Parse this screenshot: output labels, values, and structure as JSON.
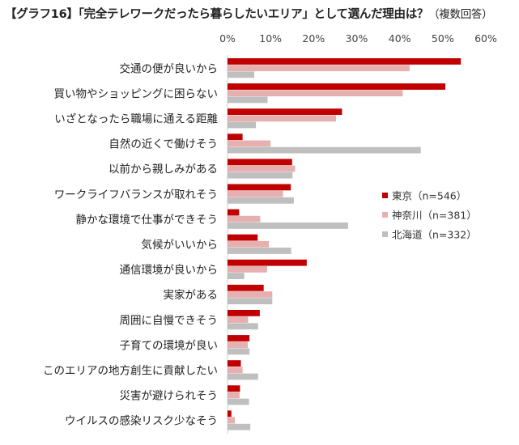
{
  "title_main": "【グラフ16】「完全テレワークだったら暮らしたいエリア」として選んだ理由は？",
  "title_sub": "（複数回答）",
  "chart_data": {
    "type": "bar",
    "orientation": "horizontal",
    "title": "【グラフ16】「完全テレワークだったら暮らしたいエリア」として選んだ理由は？（複数回答）",
    "xlim": [
      0,
      60
    ],
    "ticks": [
      "0%",
      "10%",
      "20%",
      "30%",
      "40%",
      "50%",
      "60%"
    ],
    "tick_values": [
      0,
      10,
      20,
      30,
      40,
      50,
      60
    ],
    "categories": [
      "交通の便が良いから",
      "買い物やショッピングに困らない",
      "いざとなったら職場に通える距離",
      "自然の近くで働けそう",
      "以前から親しみがある",
      "ワークライフバランスが取れそう",
      "静かな環境で仕事ができそう",
      "気候がいいから",
      "通信環境が良いから",
      "実家がある",
      "周囲に自慢できそう",
      "子育ての環境が良い",
      "このエリアの地方創生に貢献したい",
      "災害が避けられそう",
      "ウイルスの感染リスク少なそう"
    ],
    "series": [
      {
        "name": "東京（n=546）",
        "color": "#c00000",
        "values": [
          54.2,
          50.6,
          26.6,
          3.5,
          15.0,
          14.7,
          2.7,
          7.0,
          18.4,
          8.4,
          7.5,
          5.1,
          3.1,
          2.9,
          0.9
        ]
      },
      {
        "name": "神奈川（n=381）",
        "color": "#e6b0b0",
        "values": [
          42.3,
          40.7,
          25.2,
          10.0,
          15.7,
          12.9,
          7.6,
          9.6,
          9.2,
          10.4,
          4.8,
          4.7,
          3.5,
          2.8,
          1.7
        ]
      },
      {
        "name": "北海道（n=332）",
        "color": "#bfbfbf",
        "values": [
          6.2,
          9.3,
          6.6,
          44.9,
          15.1,
          15.4,
          28.0,
          14.8,
          3.9,
          10.4,
          7.1,
          5.1,
          7.1,
          5.0,
          5.3
        ]
      }
    ],
    "legend_position": "right-middle",
    "grid": false
  }
}
